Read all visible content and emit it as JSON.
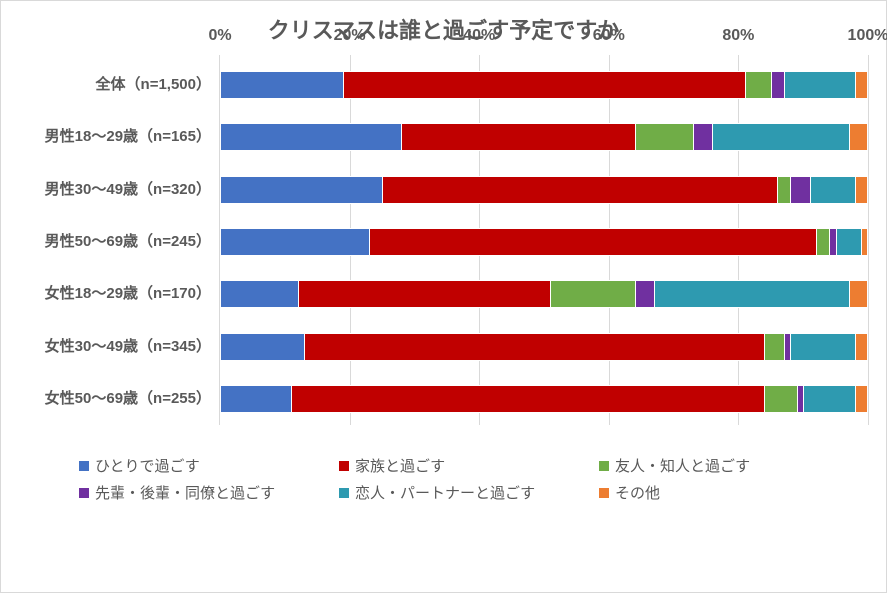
{
  "chart": {
    "type": "stacked-bar-horizontal",
    "title": "クリスマスは誰と過ごす予定ですか",
    "title_fontsize": 22,
    "title_color": "#595959",
    "background_color": "#ffffff",
    "border_color": "#d9d9d9",
    "grid_color": "#d9d9d9",
    "label_color": "#595959",
    "label_fontsize": 15,
    "label_fontweight": "bold",
    "x_axis": {
      "min": 0,
      "max": 100,
      "tick_step": 20,
      "tick_suffix": "%",
      "position": "top",
      "ticks": [
        0,
        20,
        40,
        60,
        80,
        100
      ]
    },
    "series": [
      {
        "label": "ひとりで過ごす",
        "color": "#4472c4"
      },
      {
        "label": "家族と過ごす",
        "color": "#c00000"
      },
      {
        "label": "友人・知人と過ごす",
        "color": "#70ad47"
      },
      {
        "label": "先輩・後輩・同僚と過ごす",
        "color": "#7030a0"
      },
      {
        "label": "恋人・パートナーと過ごす",
        "color": "#2e9ab0"
      },
      {
        "label": "その他",
        "color": "#ed7d31"
      }
    ],
    "categories": [
      {
        "label": "全体（n=1,500）",
        "values": [
          19,
          62,
          4,
          2,
          11,
          2
        ]
      },
      {
        "label": "男性18～29歳（n=165）",
        "values": [
          28,
          36,
          9,
          3,
          21,
          3
        ]
      },
      {
        "label": "男性30～49歳（n=320）",
        "values": [
          25,
          61,
          2,
          3,
          7,
          2
        ]
      },
      {
        "label": "男性50～69歳（n=245）",
        "values": [
          23,
          69,
          2,
          1,
          4,
          1
        ]
      },
      {
        "label": "女性18～29歳（n=170）",
        "values": [
          12,
          39,
          13,
          3,
          30,
          3
        ]
      },
      {
        "label": "女性30～49歳（n=345）",
        "values": [
          13,
          71,
          3,
          1,
          10,
          2
        ]
      },
      {
        "label": "女性50～69歳（n=255）",
        "values": [
          11,
          73,
          5,
          1,
          8,
          2
        ]
      }
    ]
  }
}
